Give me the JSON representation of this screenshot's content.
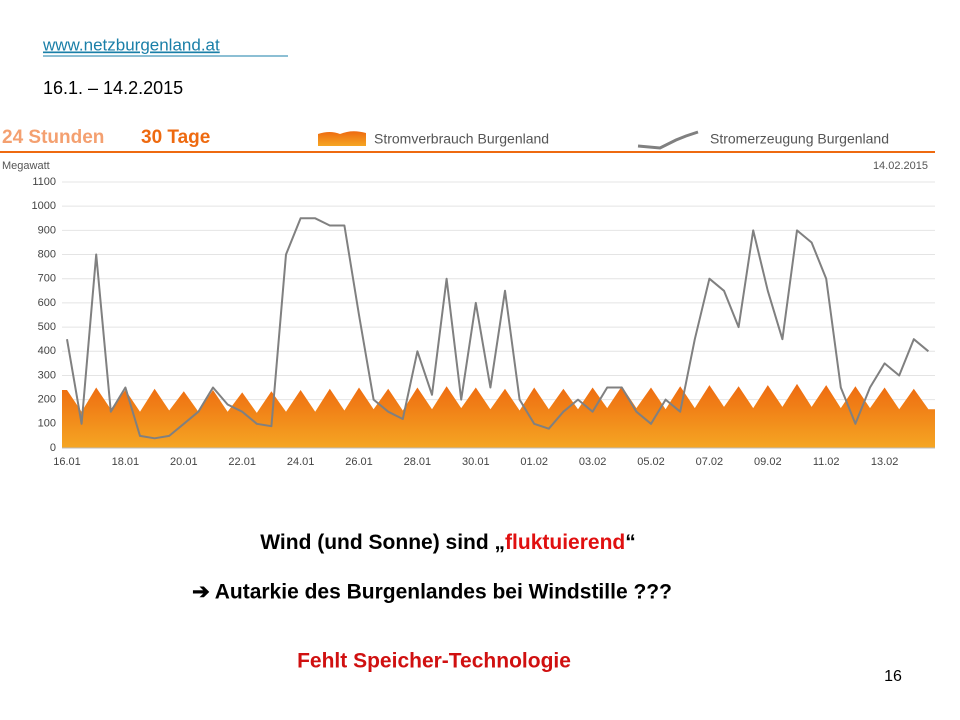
{
  "slide": {
    "link": "www.netzburgenland.at",
    "period": "16.1. – 14.2.2015",
    "heading": [
      "Wind (und Sonne) sind „",
      "fluktuierend",
      "“"
    ],
    "conclusion": "➔ Autarkie des Burgenlandes bei Windstille ???",
    "note": "Fehlt Speicher-Technologie",
    "page_number": "16"
  },
  "chart_data": {
    "type": "line",
    "tabs": [
      "24 Stunden",
      "30 Tage"
    ],
    "y_label": "Megawatt",
    "date_label": "14.02.2015",
    "categories": [
      "16.01",
      null,
      null,
      null,
      "18.01",
      null,
      null,
      null,
      "20.01",
      null,
      null,
      null,
      "22.01",
      null,
      null,
      null,
      "24.01",
      null,
      null,
      null,
      "26.01",
      null,
      null,
      null,
      "28.01",
      null,
      null,
      null,
      "30.01",
      null,
      null,
      null,
      "01.02",
      null,
      null,
      null,
      "03.02",
      null,
      null,
      null,
      "05.02",
      null,
      null,
      null,
      "07.02",
      null,
      null,
      null,
      "09.02",
      null,
      null,
      null,
      "11.02",
      null,
      null,
      null,
      "13.02",
      null,
      null,
      null
    ],
    "series": [
      {
        "name": "Stromverbrauch Burgenland",
        "type": "area",
        "color": "#ee6a10",
        "values": [
          240,
          150,
          250,
          160,
          240,
          150,
          245,
          155,
          235,
          150,
          240,
          150,
          230,
          145,
          235,
          150,
          240,
          150,
          245,
          155,
          250,
          160,
          245,
          155,
          250,
          160,
          255,
          165,
          250,
          160,
          245,
          155,
          250,
          160,
          245,
          160,
          250,
          165,
          255,
          165,
          250,
          160,
          255,
          165,
          260,
          170,
          255,
          165,
          260,
          170,
          265,
          170,
          260,
          165,
          255,
          165,
          250,
          160,
          245,
          160
        ]
      },
      {
        "name": "Stromerzeugung Burgenland",
        "type": "line",
        "color": "#808080",
        "values": [
          450,
          100,
          800,
          150,
          250,
          50,
          40,
          50,
          100,
          150,
          250,
          180,
          150,
          100,
          90,
          800,
          950,
          950,
          920,
          920,
          550,
          200,
          150,
          120,
          400,
          220,
          700,
          200,
          600,
          250,
          650,
          200,
          100,
          80,
          150,
          200,
          150,
          250,
          250,
          150,
          100,
          200,
          150,
          450,
          700,
          650,
          500,
          900,
          650,
          450,
          900,
          850,
          700,
          250,
          100,
          250,
          350,
          300,
          450,
          400
        ]
      }
    ],
    "ylim": [
      0,
      1100
    ],
    "yticks": [
      0,
      100,
      200,
      300,
      400,
      500,
      600,
      700,
      800,
      900,
      1000,
      1100
    ],
    "grid": true
  }
}
